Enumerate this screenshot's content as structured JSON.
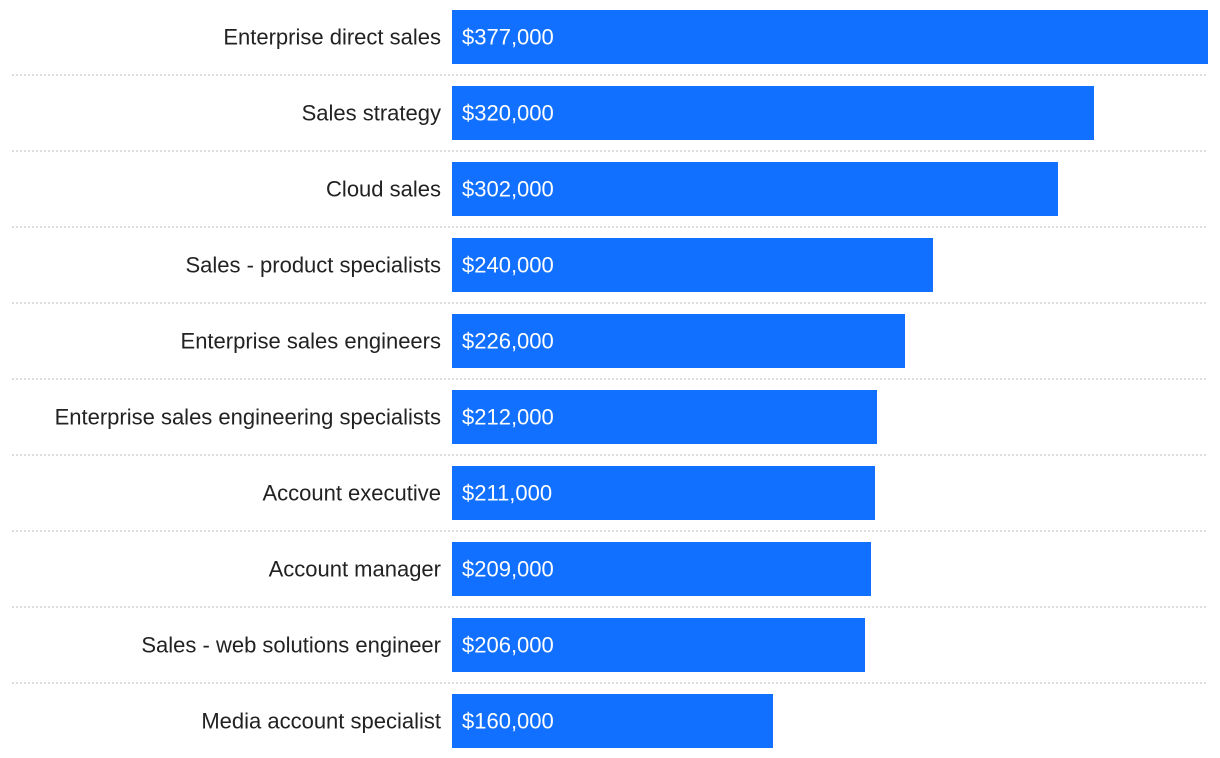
{
  "chart_data": {
    "type": "bar",
    "orientation": "horizontal",
    "title": "",
    "xlabel": "",
    "ylabel": "",
    "categories": [
      "Enterprise direct sales",
      "Sales strategy",
      "Cloud sales",
      "Sales - product specialists",
      "Enterprise sales engineers",
      "Enterprise sales engineering specialists",
      "Account executive",
      "Account manager",
      "Sales - web solutions engineer",
      "Media account specialist"
    ],
    "values": [
      377000,
      320000,
      302000,
      240000,
      226000,
      212000,
      211000,
      209000,
      206000,
      160000
    ],
    "value_labels": [
      "$377,000",
      "$320,000",
      "$302,000",
      "$240,000",
      "$226,000",
      "$212,000",
      "$211,000",
      "$209,000",
      "$206,000",
      "$160,000"
    ],
    "xlim": [
      0,
      377000
    ],
    "grid": false,
    "legend": "none",
    "colors": {
      "bar": "#1170ff",
      "category_text": "#222222",
      "value_text": "#ffffff",
      "separator": "#c8c8c8"
    }
  }
}
